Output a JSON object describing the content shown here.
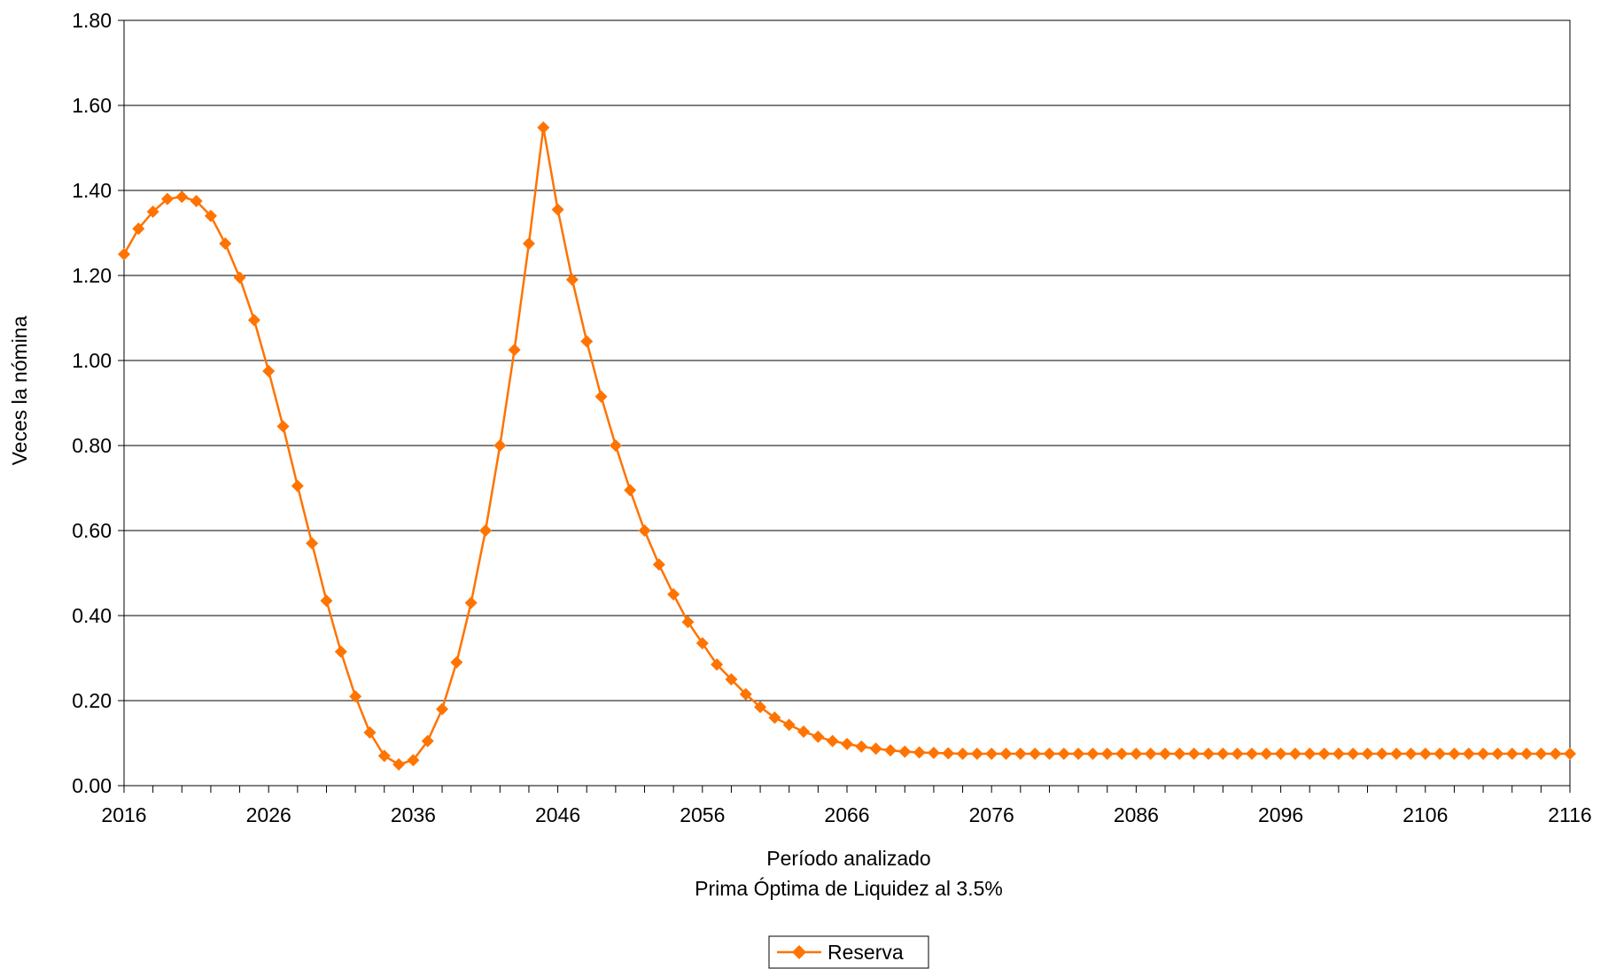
{
  "chart_data": {
    "type": "line",
    "xlabel": "Período analizado",
    "subtitle": "Prima Óptima de Liquidez al 3.5%",
    "ylabel": "Veces la nómina",
    "xlim": [
      2016,
      2116
    ],
    "ylim": [
      0,
      1.8
    ],
    "x_ticks": [
      2016,
      2026,
      2036,
      2046,
      2056,
      2066,
      2076,
      2086,
      2096,
      2106,
      2116
    ],
    "y_ticks": [
      "0.00",
      "0.20",
      "0.40",
      "0.60",
      "0.80",
      "1.00",
      "1.20",
      "1.40",
      "1.60",
      "1.80"
    ],
    "grid": true,
    "legend_position": "bottom-center",
    "series": [
      {
        "name": "Reserva",
        "color": "#ff7300",
        "marker": "diamond",
        "x_start": 2016,
        "x_step": 1,
        "values": [
          1.25,
          1.31,
          1.35,
          1.38,
          1.385,
          1.375,
          1.34,
          1.275,
          1.195,
          1.095,
          0.975,
          0.845,
          0.705,
          0.57,
          0.435,
          0.315,
          0.21,
          0.125,
          0.07,
          0.05,
          0.06,
          0.105,
          0.18,
          0.29,
          0.43,
          0.6,
          0.8,
          1.025,
          1.275,
          1.548,
          1.355,
          1.19,
          1.045,
          0.915,
          0.8,
          0.695,
          0.6,
          0.52,
          0.45,
          0.385,
          0.335,
          0.285,
          0.25,
          0.215,
          0.185,
          0.16,
          0.143,
          0.127,
          0.115,
          0.105,
          0.098,
          0.092,
          0.087,
          0.083,
          0.08,
          0.078,
          0.077,
          0.076,
          0.075,
          0.075,
          0.075,
          0.075,
          0.075,
          0.075,
          0.075,
          0.075,
          0.075,
          0.075,
          0.075,
          0.075,
          0.075,
          0.075,
          0.075,
          0.075,
          0.075,
          0.075,
          0.075,
          0.075,
          0.075,
          0.075,
          0.075,
          0.075,
          0.075,
          0.075,
          0.075,
          0.075,
          0.075,
          0.075,
          0.075,
          0.075,
          0.075,
          0.075,
          0.075,
          0.075,
          0.075,
          0.075,
          0.075,
          0.075,
          0.075,
          0.075,
          0.075
        ]
      }
    ]
  }
}
